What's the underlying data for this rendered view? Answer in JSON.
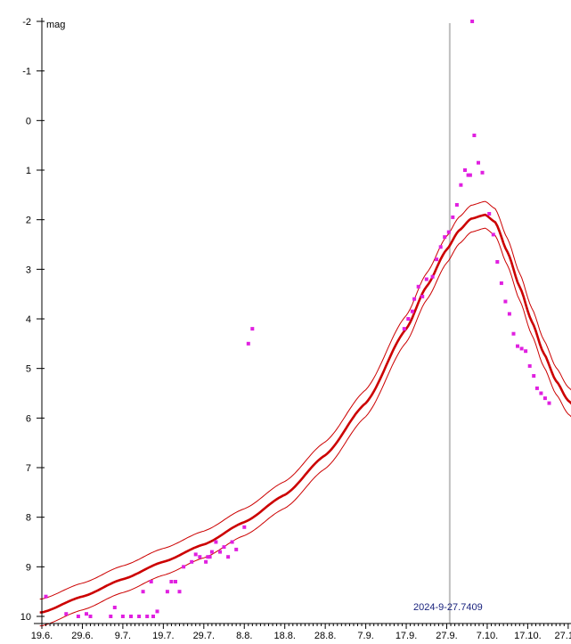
{
  "chart_data": {
    "type": "scatter",
    "title": "",
    "ylabel": "mag",
    "xlabel": "",
    "y_inverted": true,
    "ylim": [
      -2,
      10
    ],
    "xlim_days": [
      0,
      133
    ],
    "x_origin_label": "19.6.",
    "y_ticks": [
      "-2",
      "-1",
      "0",
      "1",
      "2",
      "3",
      "4",
      "5",
      "6",
      "7",
      "8",
      "9",
      "10"
    ],
    "x_ticks": [
      {
        "day": 0,
        "label": "19.6."
      },
      {
        "day": 10,
        "label": "29.6."
      },
      {
        "day": 20,
        "label": "9.7."
      },
      {
        "day": 30,
        "label": "19.7."
      },
      {
        "day": 40,
        "label": "29.7."
      },
      {
        "day": 50,
        "label": "8.8."
      },
      {
        "day": 60,
        "label": "18.8."
      },
      {
        "day": 70,
        "label": "28.8."
      },
      {
        "day": 80,
        "label": "7.9."
      },
      {
        "day": 90,
        "label": "17.9."
      },
      {
        "day": 100,
        "label": "27.9."
      },
      {
        "day": 110,
        "label": "7.10."
      },
      {
        "day": 120,
        "label": "17.10."
      },
      {
        "day": 130,
        "label": "27.10."
      }
    ],
    "marker_line": {
      "day": 100.74,
      "label": "2024-9-27.7409",
      "color": "#c0c0c0"
    },
    "model": {
      "peak_day": 109.5,
      "peak_mag": 1.9,
      "curve_color": "#cc0000",
      "band_offset": 0.27,
      "points_day": [
        0,
        10,
        20,
        30,
        40,
        50,
        60,
        70,
        80,
        90,
        95,
        100,
        103,
        106,
        109.5,
        112,
        115,
        118,
        121,
        124,
        127,
        130,
        133
      ],
      "points_mag": [
        9.92,
        9.6,
        9.25,
        8.9,
        8.55,
        8.1,
        7.55,
        6.75,
        5.7,
        4.2,
        3.35,
        2.6,
        2.22,
        1.98,
        1.9,
        2.05,
        2.65,
        3.35,
        4.05,
        4.7,
        5.25,
        5.65,
        5.9
      ]
    },
    "observations": {
      "name": "observations",
      "color": "#e020e0",
      "x": [
        1,
        6,
        9,
        11,
        12,
        17,
        18,
        20,
        22,
        24,
        25,
        26,
        27,
        27.5,
        28.5,
        31,
        32,
        33,
        34,
        35,
        37,
        38,
        39,
        40.5,
        41,
        41.5,
        42,
        43,
        44,
        45,
        46,
        47,
        48,
        50,
        51,
        52,
        89.5,
        90.5,
        91.5,
        92,
        93,
        94,
        95,
        96.5,
        97.5,
        98.5,
        99.5,
        100.5,
        101.5,
        102.5,
        103.5,
        104.5,
        105.3,
        105.8,
        106.3,
        106.8,
        107.8,
        108.8,
        110.5,
        111.5,
        112.5,
        113.5,
        114.5,
        115.5,
        116.5,
        117.5,
        118.5,
        119.5,
        120.5,
        121.5,
        122.3,
        123.3,
        124.3,
        125.3
      ],
      "y": [
        9.6,
        9.95,
        10.0,
        9.95,
        10.0,
        10.0,
        9.82,
        10.0,
        10.0,
        10.0,
        9.5,
        10.0,
        9.3,
        10.0,
        9.9,
        9.5,
        9.3,
        9.3,
        9.5,
        9.0,
        8.9,
        8.75,
        8.8,
        8.9,
        8.8,
        8.8,
        8.7,
        8.5,
        8.7,
        8.6,
        8.8,
        8.5,
        8.65,
        8.2,
        4.5,
        4.2,
        4.2,
        4.0,
        3.85,
        3.6,
        3.35,
        3.55,
        3.2,
        3.15,
        2.8,
        2.55,
        2.35,
        2.25,
        1.95,
        1.7,
        1.3,
        1.0,
        1.1,
        1.1,
        -2.0,
        0.3,
        0.85,
        1.05,
        1.88,
        2.3,
        2.85,
        3.28,
        3.65,
        3.9,
        4.3,
        4.55,
        4.6,
        4.65,
        4.95,
        5.15,
        5.4,
        5.5,
        5.6,
        5.7
      ]
    }
  }
}
